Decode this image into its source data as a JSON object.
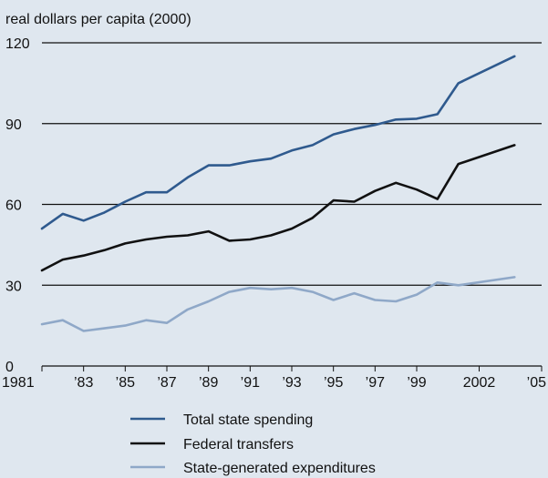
{
  "chart_data": {
    "type": "line",
    "ylabel": "real dollars per capita (2000)",
    "xlabel": "",
    "ylim": [
      0,
      120
    ],
    "xlim": [
      1981,
      2005
    ],
    "yticks": [
      0,
      30,
      60,
      90,
      120
    ],
    "ytick_labels": [
      "0",
      "30",
      "60",
      "90",
      "120"
    ],
    "xticks": [
      1981,
      1983,
      1985,
      1987,
      1989,
      1991,
      1993,
      1995,
      1997,
      1999,
      2002,
      2005
    ],
    "xtick_labels": [
      "1981",
      "’83",
      "’85",
      "’87",
      "’89",
      "’91",
      "’93",
      "’95",
      "’97",
      "’99",
      "2002",
      "’05"
    ],
    "grid": "horizontal",
    "legend_position": "bottom",
    "x": [
      1981,
      1982,
      1983,
      1984,
      1985,
      1986,
      1987,
      1988,
      1989,
      1990,
      1991,
      1992,
      1993,
      1994,
      1995,
      1996,
      1997,
      1998,
      1999,
      2000,
      2001,
      2002
    ],
    "series": [
      {
        "name": "Total state spending",
        "color": "#2f5a8e",
        "values": [
          51,
          56.5,
          54,
          57,
          61,
          64.5,
          64.5,
          70,
          74.5,
          74.5,
          76,
          77,
          80,
          82,
          86,
          88,
          89.5,
          91.5,
          91.8,
          93.5,
          105,
          115
        ]
      },
      {
        "name": "Federal transfers",
        "color": "#111111",
        "values": [
          35.5,
          39.5,
          41,
          43,
          45.5,
          47,
          48,
          48.5,
          50,
          46.5,
          47,
          48.5,
          51,
          55,
          61.5,
          61,
          65,
          68,
          65.5,
          62,
          75,
          82
        ]
      },
      {
        "name": "State-generated expenditures",
        "color": "#8fa8c8",
        "values": [
          15.5,
          17,
          13,
          14,
          15,
          17,
          16,
          21,
          24,
          27.5,
          29,
          28.5,
          29,
          27.5,
          24.5,
          27,
          24.5,
          24,
          26.5,
          31,
          30,
          33
        ]
      }
    ]
  }
}
